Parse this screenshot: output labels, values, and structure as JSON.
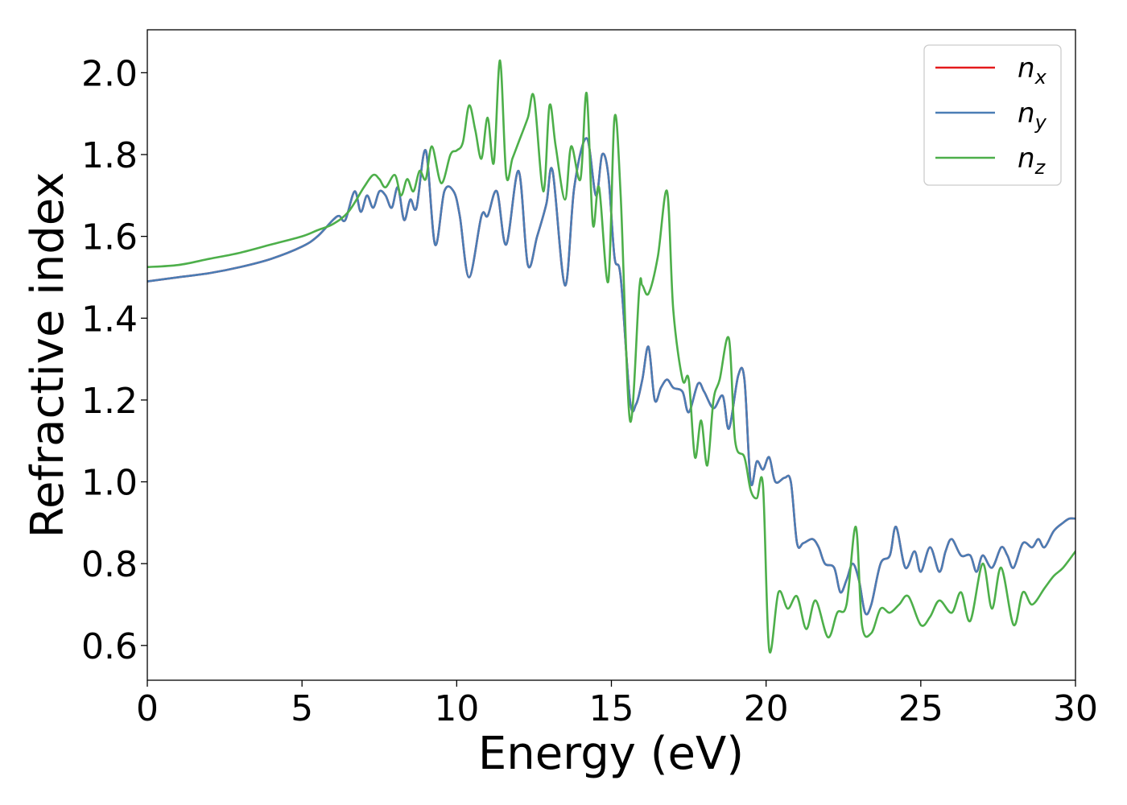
{
  "chart_data": {
    "type": "line",
    "title": "",
    "xlabel": "Energy (eV)",
    "ylabel": "Refractive index",
    "xlim": [
      0,
      30
    ],
    "ylim": [
      0.515,
      2.105
    ],
    "xticks": [
      0,
      5,
      10,
      15,
      20,
      25,
      30
    ],
    "xtick_labels": [
      "0",
      "5",
      "10",
      "15",
      "20",
      "25",
      "30"
    ],
    "yticks": [
      0.6,
      0.8,
      1.0,
      1.2,
      1.4,
      1.6,
      1.8,
      2.0
    ],
    "ytick_labels": [
      "0.6",
      "0.8",
      "1.0",
      "1.2",
      "1.4",
      "1.6",
      "1.8",
      "2.0"
    ],
    "grid": false,
    "legend_position": "top-right",
    "series": [
      {
        "name": "n_x",
        "label_main": "n",
        "label_sub": "x",
        "color": "#e41a1c",
        "x": [
          0,
          1,
          2,
          3,
          4,
          5,
          5.5,
          6,
          6.2,
          6.4,
          6.7,
          6.9,
          7.1,
          7.3,
          7.5,
          7.7,
          7.9,
          8.1,
          8.3,
          8.5,
          8.7,
          9.0,
          9.3,
          9.6,
          9.9,
          10.1,
          10.4,
          10.8,
          11.0,
          11.3,
          11.6,
          12.0,
          12.3,
          12.6,
          12.9,
          13.1,
          13.5,
          13.8,
          14.2,
          14.5,
          14.7,
          14.9,
          15.1,
          15.3,
          15.6,
          15.8,
          16.0,
          16.2,
          16.4,
          16.6,
          16.8,
          17.0,
          17.3,
          17.5,
          17.8,
          18.0,
          18.3,
          18.6,
          18.8,
          19.1,
          19.3,
          19.5,
          19.7,
          19.9,
          20.1,
          20.3,
          20.6,
          20.8,
          21.0,
          21.2,
          21.5,
          21.7,
          21.9,
          22.2,
          22.4,
          22.6,
          22.8,
          23.0,
          23.2,
          23.4,
          23.7,
          24.0,
          24.2,
          24.5,
          24.8,
          25.0,
          25.3,
          25.6,
          25.8,
          26.0,
          26.3,
          26.6,
          26.8,
          27.0,
          27.3,
          27.6,
          27.8,
          28.0,
          28.3,
          28.6,
          28.8,
          29.0,
          29.3,
          29.6,
          29.8,
          30.0
        ],
        "y": [
          1.49,
          1.5,
          1.51,
          1.525,
          1.545,
          1.575,
          1.6,
          1.64,
          1.65,
          1.64,
          1.71,
          1.66,
          1.7,
          1.67,
          1.71,
          1.7,
          1.67,
          1.72,
          1.64,
          1.69,
          1.67,
          1.81,
          1.58,
          1.71,
          1.71,
          1.65,
          1.5,
          1.65,
          1.65,
          1.71,
          1.58,
          1.76,
          1.53,
          1.6,
          1.68,
          1.76,
          1.48,
          1.72,
          1.84,
          1.7,
          1.8,
          1.75,
          1.55,
          1.5,
          1.2,
          1.19,
          1.25,
          1.33,
          1.2,
          1.23,
          1.25,
          1.23,
          1.22,
          1.17,
          1.24,
          1.22,
          1.18,
          1.21,
          1.13,
          1.26,
          1.25,
          1.0,
          1.05,
          1.03,
          1.06,
          1.0,
          1.01,
          1.0,
          0.85,
          0.85,
          0.86,
          0.84,
          0.8,
          0.79,
          0.73,
          0.76,
          0.8,
          0.76,
          0.68,
          0.7,
          0.8,
          0.82,
          0.89,
          0.79,
          0.83,
          0.78,
          0.84,
          0.78,
          0.83,
          0.86,
          0.82,
          0.82,
          0.78,
          0.82,
          0.79,
          0.84,
          0.82,
          0.79,
          0.85,
          0.84,
          0.86,
          0.84,
          0.88,
          0.9,
          0.91,
          0.91
        ]
      },
      {
        "name": "n_y",
        "label_main": "n",
        "label_sub": "y",
        "color": "#4a7db5",
        "x": [
          0,
          1,
          2,
          3,
          4,
          5,
          5.5,
          6,
          6.2,
          6.4,
          6.7,
          6.9,
          7.1,
          7.3,
          7.5,
          7.7,
          7.9,
          8.1,
          8.3,
          8.5,
          8.7,
          9.0,
          9.3,
          9.6,
          9.9,
          10.1,
          10.4,
          10.8,
          11.0,
          11.3,
          11.6,
          12.0,
          12.3,
          12.6,
          12.9,
          13.1,
          13.5,
          13.8,
          14.2,
          14.5,
          14.7,
          14.9,
          15.1,
          15.3,
          15.6,
          15.8,
          16.0,
          16.2,
          16.4,
          16.6,
          16.8,
          17.0,
          17.3,
          17.5,
          17.8,
          18.0,
          18.3,
          18.6,
          18.8,
          19.1,
          19.3,
          19.5,
          19.7,
          19.9,
          20.1,
          20.3,
          20.6,
          20.8,
          21.0,
          21.2,
          21.5,
          21.7,
          21.9,
          22.2,
          22.4,
          22.6,
          22.8,
          23.0,
          23.2,
          23.4,
          23.7,
          24.0,
          24.2,
          24.5,
          24.8,
          25.0,
          25.3,
          25.6,
          25.8,
          26.0,
          26.3,
          26.6,
          26.8,
          27.0,
          27.3,
          27.6,
          27.8,
          28.0,
          28.3,
          28.6,
          28.8,
          29.0,
          29.3,
          29.6,
          29.8,
          30.0
        ],
        "y": [
          1.49,
          1.5,
          1.51,
          1.525,
          1.545,
          1.575,
          1.6,
          1.64,
          1.65,
          1.64,
          1.71,
          1.66,
          1.7,
          1.67,
          1.71,
          1.7,
          1.67,
          1.72,
          1.64,
          1.69,
          1.67,
          1.81,
          1.58,
          1.71,
          1.71,
          1.65,
          1.5,
          1.65,
          1.65,
          1.71,
          1.58,
          1.76,
          1.53,
          1.6,
          1.68,
          1.76,
          1.48,
          1.72,
          1.84,
          1.7,
          1.8,
          1.75,
          1.55,
          1.5,
          1.2,
          1.19,
          1.25,
          1.33,
          1.2,
          1.23,
          1.25,
          1.23,
          1.22,
          1.17,
          1.24,
          1.22,
          1.18,
          1.21,
          1.13,
          1.26,
          1.25,
          1.0,
          1.05,
          1.03,
          1.06,
          1.0,
          1.01,
          1.0,
          0.85,
          0.85,
          0.86,
          0.84,
          0.8,
          0.79,
          0.73,
          0.76,
          0.8,
          0.76,
          0.68,
          0.7,
          0.8,
          0.82,
          0.89,
          0.79,
          0.83,
          0.78,
          0.84,
          0.78,
          0.83,
          0.86,
          0.82,
          0.82,
          0.78,
          0.82,
          0.79,
          0.84,
          0.82,
          0.79,
          0.85,
          0.84,
          0.86,
          0.84,
          0.88,
          0.9,
          0.91,
          0.91
        ]
      },
      {
        "name": "n_z",
        "label_main": "n",
        "label_sub": "z",
        "color": "#4daf4a",
        "x": [
          0,
          1,
          2,
          3,
          4,
          5,
          5.5,
          6,
          6.5,
          7.0,
          7.3,
          7.5,
          7.7,
          8.0,
          8.2,
          8.4,
          8.6,
          8.8,
          9.0,
          9.2,
          9.5,
          9.8,
          10.0,
          10.2,
          10.4,
          10.6,
          10.8,
          11.0,
          11.2,
          11.4,
          11.6,
          11.8,
          12.0,
          12.3,
          12.5,
          12.8,
          13.0,
          13.2,
          13.5,
          13.7,
          14.0,
          14.2,
          14.4,
          14.6,
          14.9,
          15.1,
          15.3,
          15.6,
          15.9,
          16.0,
          16.2,
          16.5,
          16.8,
          17.0,
          17.3,
          17.5,
          17.7,
          17.9,
          18.1,
          18.3,
          18.5,
          18.8,
          19.0,
          19.3,
          19.5,
          19.7,
          19.9,
          20.1,
          20.4,
          20.7,
          21.0,
          21.3,
          21.6,
          22.0,
          22.3,
          22.6,
          22.9,
          23.1,
          23.4,
          23.7,
          24.0,
          24.3,
          24.6,
          25.0,
          25.3,
          25.6,
          26.0,
          26.3,
          26.6,
          27.0,
          27.3,
          27.6,
          28.0,
          28.3,
          28.6,
          29.0,
          29.3,
          29.6,
          30.0
        ],
        "y": [
          1.525,
          1.53,
          1.545,
          1.56,
          1.58,
          1.6,
          1.615,
          1.63,
          1.66,
          1.72,
          1.75,
          1.74,
          1.72,
          1.75,
          1.7,
          1.74,
          1.71,
          1.76,
          1.74,
          1.82,
          1.73,
          1.8,
          1.81,
          1.83,
          1.92,
          1.86,
          1.79,
          1.89,
          1.78,
          2.03,
          1.75,
          1.79,
          1.83,
          1.89,
          1.94,
          1.71,
          1.92,
          1.82,
          1.69,
          1.82,
          1.74,
          1.95,
          1.63,
          1.72,
          1.49,
          1.89,
          1.7,
          1.15,
          1.47,
          1.48,
          1.46,
          1.55,
          1.71,
          1.42,
          1.25,
          1.25,
          1.06,
          1.15,
          1.04,
          1.2,
          1.25,
          1.35,
          1.1,
          1.06,
          0.98,
          0.96,
          0.99,
          0.59,
          0.73,
          0.69,
          0.72,
          0.64,
          0.71,
          0.62,
          0.68,
          0.7,
          0.89,
          0.65,
          0.63,
          0.69,
          0.68,
          0.7,
          0.72,
          0.65,
          0.67,
          0.71,
          0.68,
          0.73,
          0.66,
          0.8,
          0.69,
          0.79,
          0.65,
          0.73,
          0.7,
          0.74,
          0.77,
          0.79,
          0.83
        ]
      }
    ]
  }
}
